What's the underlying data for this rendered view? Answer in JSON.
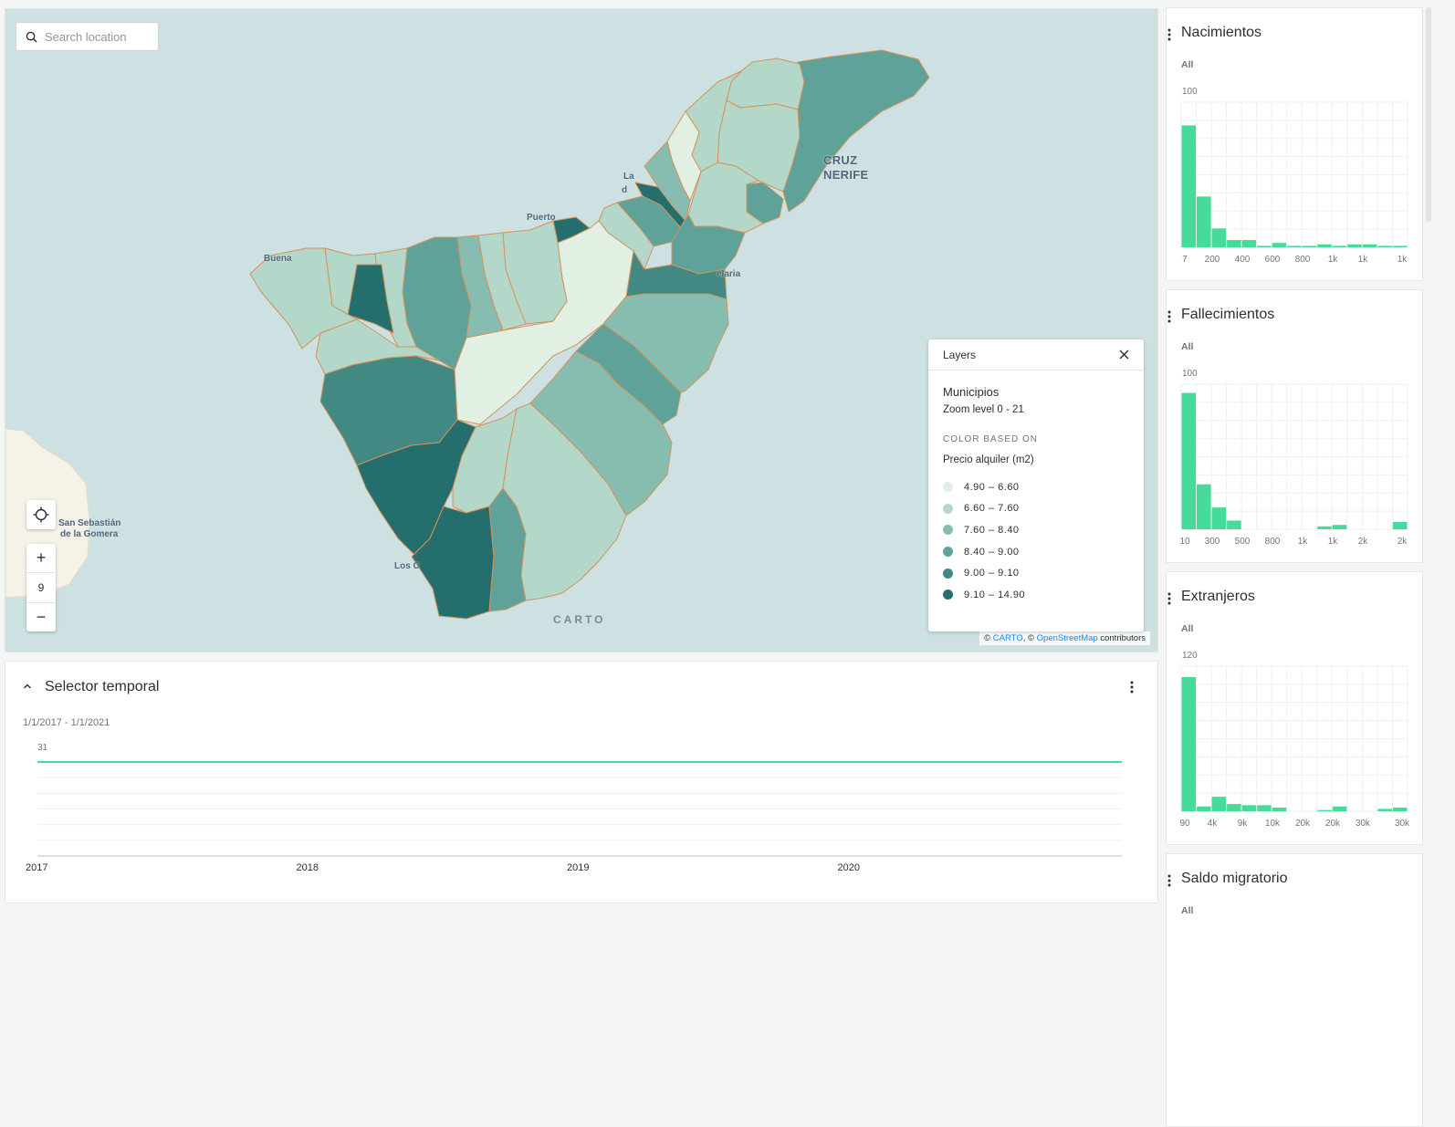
{
  "search": {
    "placeholder": "Search location"
  },
  "map": {
    "zoom_in": "+",
    "zoom_level": "9",
    "zoom_out": "−",
    "labels": [
      {
        "text": "Puerto",
        "cls": ""
      },
      {
        "text": "Buena",
        "cls": ""
      },
      {
        "text": "CRUZ",
        "cls": "big"
      },
      {
        "text": "NERIFE",
        "cls": "big"
      },
      {
        "text": "La",
        "cls": ""
      },
      {
        "text": "d",
        "cls": ""
      },
      {
        "text": "elaria",
        "cls": ""
      },
      {
        "text": "San Sebastián",
        "cls": ""
      },
      {
        "text": "de la Gomera",
        "cls": ""
      },
      {
        "text": "Los C",
        "cls": ""
      }
    ],
    "logo": "CARTO",
    "attribution": {
      "prefix": "©",
      "carto": "CARTO",
      "sep": ", ©",
      "osm": "OpenStreetMap",
      "suffix": "contributors"
    },
    "colors": [
      "#e1f0e2",
      "#b3d7c8",
      "#86bdb0",
      "#5fa29a",
      "#438983",
      "#246f6e"
    ]
  },
  "layers": {
    "title": "Layers",
    "layer_name": "Municipios",
    "zoom_range": "Zoom level 0 - 21",
    "color_based_on_label": "COLOR BASED ON",
    "variable": "Precio alquiler (m2)",
    "legend": [
      {
        "label": "4.90 – 6.60",
        "color": "#e1f0e2"
      },
      {
        "label": "6.60 – 7.60",
        "color": "#b3d7c8"
      },
      {
        "label": "7.60 – 8.40",
        "color": "#86bdb0"
      },
      {
        "label": "8.40 – 9.00",
        "color": "#5fa29a"
      },
      {
        "label": "9.00 – 9.10",
        "color": "#438983"
      },
      {
        "label": "9.10 – 14.90",
        "color": "#246f6e"
      }
    ]
  },
  "time_selector": {
    "title": "Selector temporal",
    "range": "1/1/2017 - 1/1/2021",
    "y_max_label": "31",
    "years": [
      "2017",
      "2018",
      "2019",
      "2020"
    ]
  },
  "widgets": [
    {
      "title": "Nacimientos",
      "filter": "All",
      "y_max_label": "100",
      "chart_data": {
        "type": "bar",
        "ymax": 100,
        "values": [
          84,
          35,
          13,
          5,
          5,
          1,
          3,
          1,
          1,
          2,
          1,
          2,
          2,
          1,
          1
        ],
        "xticks": [
          "7",
          "200",
          "400",
          "600",
          "800",
          "1k",
          "1k",
          "1k"
        ]
      }
    },
    {
      "title": "Fallecimientos",
      "filter": "All",
      "y_max_label": "100",
      "chart_data": {
        "type": "bar",
        "ymax": 100,
        "values": [
          94,
          31,
          15,
          6,
          0,
          0,
          0,
          0,
          0,
          2,
          3,
          0,
          0,
          0,
          5
        ],
        "xticks": [
          "10",
          "300",
          "500",
          "800",
          "1k",
          "1k",
          "2k",
          "2k"
        ]
      }
    },
    {
      "title": "Extranjeros",
      "filter": "All",
      "y_max_label": "120",
      "chart_data": {
        "type": "bar",
        "ymax": 120,
        "values": [
          111,
          4,
          12,
          6,
          5,
          5,
          3,
          0,
          0,
          1,
          4,
          0,
          0,
          2,
          3
        ],
        "xticks": [
          "90",
          "4k",
          "9k",
          "10k",
          "20k",
          "20k",
          "30k",
          "30k"
        ]
      }
    },
    {
      "title": "Saldo migratorio",
      "filter": "All",
      "y_max_label": "",
      "chart_data": {
        "type": "bar",
        "values": [],
        "xticks": []
      }
    }
  ]
}
